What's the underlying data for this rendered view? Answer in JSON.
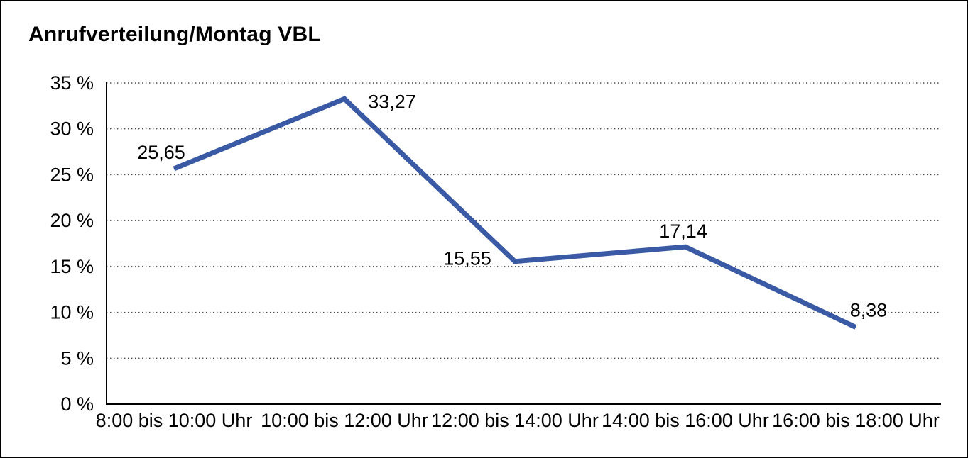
{
  "window": {
    "background_color": "#ffffff",
    "border_color": "#000000"
  },
  "chart_data": {
    "type": "line",
    "title": "Anrufverteilung/Montag VBL",
    "categories": [
      "8:00 bis 10:00 Uhr",
      "10:00 bis 12:00 Uhr",
      "12:00 bis 14:00 Uhr",
      "14:00 bis 16:00 Uhr",
      "16:00 bis 18:00 Uhr"
    ],
    "values": [
      25.65,
      33.27,
      15.55,
      17.14,
      8.38
    ],
    "value_labels": [
      "25,65",
      "33,27",
      "15,55",
      "17,14",
      "8,38"
    ],
    "ytick_labels": [
      "0 %",
      "5 %",
      "10 %",
      "15 %",
      "20 %",
      "25 %",
      "30 %",
      "35 %"
    ],
    "ylim": [
      0,
      35
    ],
    "ytick_step": 5,
    "xlabel": "",
    "ylabel": "",
    "grid": "horizontal-dotted",
    "legend": "none",
    "line_color": "#3A5AA5",
    "axis_color": "#000000",
    "text_color": "#000000"
  }
}
